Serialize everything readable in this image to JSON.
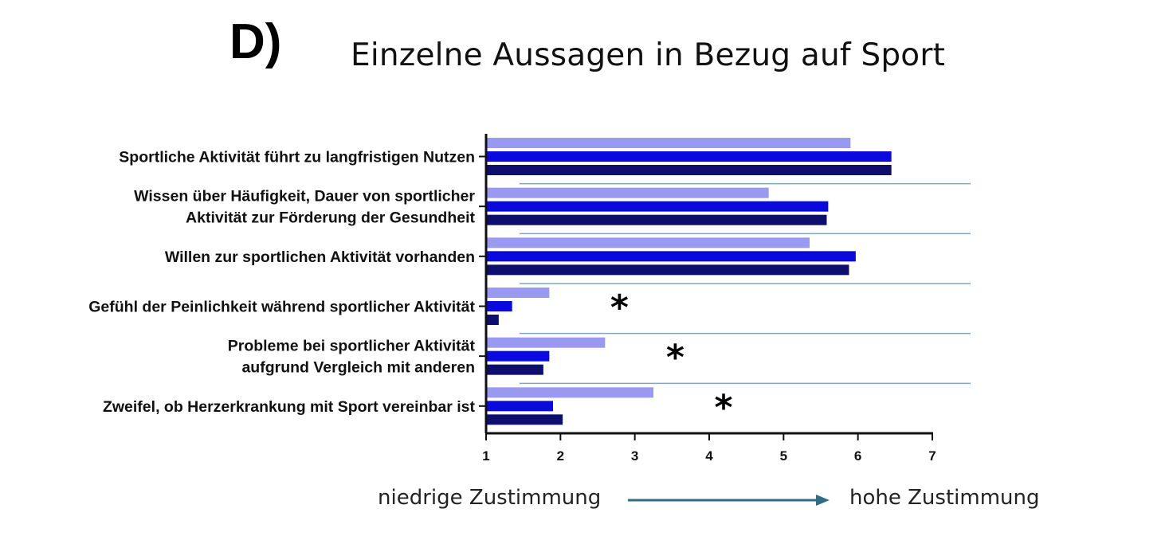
{
  "panel_letter": "D)",
  "title": "Einzelne Aussagen in Bezug auf Sport",
  "scale": {
    "low_label": "niedrige Zustimmung",
    "high_label": "hohe Zustimmung"
  },
  "colors": {
    "series_1": "#9999f2",
    "series_2": "#0a0add",
    "series_3": "#0e0e6f",
    "separator": "#7fa6ba",
    "arrow": "#2f6d86"
  },
  "chart_data": {
    "type": "bar",
    "orientation": "horizontal",
    "title": "Einzelne Aussagen in Bezug auf Sport",
    "xlim": [
      1,
      7
    ],
    "xticks": [
      "1",
      "2",
      "3",
      "4",
      "5",
      "6",
      "7"
    ],
    "categories": [
      [
        "Sportliche Aktivität führt zu langfristigen Nutzen"
      ],
      [
        "Wissen über Häufigkeit, Dauer von sportlicher",
        "Aktivität zur Förderung der Gesundheit"
      ],
      [
        "Willen zur sportlichen Aktivität vorhanden"
      ],
      [
        "Gefühl der Peinlichkeit während sportlicher Aktivität"
      ],
      [
        "Probleme bei sportlicher Aktivität",
        "aufgrund Vergleich mit anderen"
      ],
      [
        "Zweifel, ob Herzerkrankung mit Sport vereinbar ist"
      ]
    ],
    "series": [
      {
        "values": [
          5.9,
          4.8,
          5.35,
          1.85,
          2.6,
          3.25
        ]
      },
      {
        "values": [
          6.45,
          5.6,
          5.97,
          1.35,
          1.85,
          1.9
        ]
      },
      {
        "values": [
          6.45,
          5.58,
          5.88,
          1.17,
          1.77,
          2.03
        ]
      }
    ],
    "significance": [
      "",
      "",
      "",
      "*",
      "*",
      "*"
    ],
    "grid": false,
    "legend": "none"
  }
}
